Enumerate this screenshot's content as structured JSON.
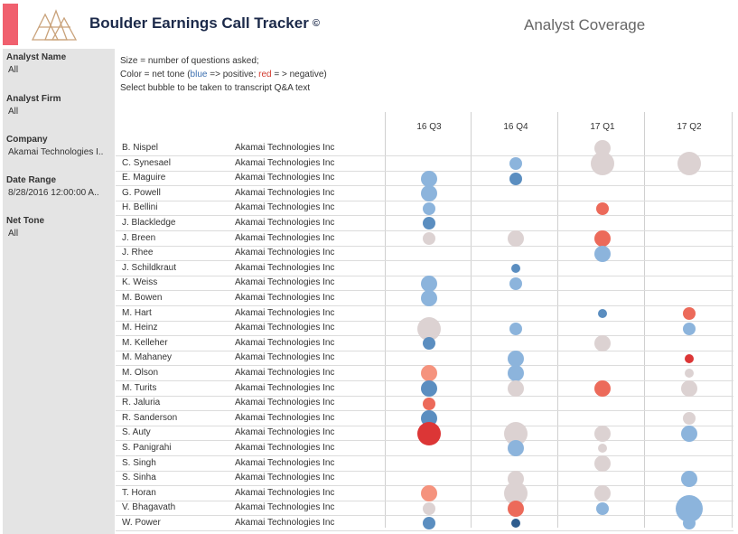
{
  "header": {
    "app_title": "Boulder Earnings Call Tracker",
    "copyright": "©",
    "page_title": "Analyst Coverage",
    "accent_color": "#f0606e",
    "logo_icon": "triangle-logo-icon"
  },
  "filters": [
    {
      "label": "Analyst Name",
      "value": "All"
    },
    {
      "label": "Analyst Firm",
      "value": "All"
    },
    {
      "label": "Company",
      "value": "Akamai Technologies I.."
    },
    {
      "label": "Date Range",
      "value": "8/28/2016 12:00:00 A.."
    },
    {
      "label": "Net Tone",
      "value": "All"
    }
  ],
  "legend": {
    "line1": "Size = number of questions asked;",
    "line2_prefix": "Color = net tone (",
    "line2_blue": "blue",
    "line2_mid": " => positive; ",
    "line2_red": "red",
    "line2_suffix": " = > negative)",
    "line3": "Select bubble to be taken to transcript Q&A text"
  },
  "colors": {
    "strong_positive": "#2f5d8f",
    "positive": "#5b8ec0",
    "mild_positive": "#8cb4dc",
    "neutral": "#dcd2d2",
    "mild_negative": "#f5937e",
    "negative": "#ec6a5a",
    "strong_negative": "#dc3636"
  },
  "columns": [
    "16 Q3",
    "16 Q4",
    "17 Q1",
    "17 Q2"
  ],
  "rows": [
    {
      "name": "B. Nispel",
      "firm": "Akamai Technologies Inc",
      "cells": [
        null,
        null,
        {
          "size": 3,
          "tone": "neutral"
        },
        null
      ]
    },
    {
      "name": "C. Synesael",
      "firm": "Akamai Technologies Inc",
      "cells": [
        null,
        {
          "size": 2,
          "tone": "mild_positive"
        },
        {
          "size": 4,
          "tone": "neutral"
        },
        {
          "size": 4,
          "tone": "neutral"
        }
      ]
    },
    {
      "name": "E. Maguire",
      "firm": "Akamai Technologies Inc",
      "cells": [
        {
          "size": 3,
          "tone": "mild_positive"
        },
        {
          "size": 2,
          "tone": "positive"
        },
        null,
        null
      ]
    },
    {
      "name": "G. Powell",
      "firm": "Akamai Technologies Inc",
      "cells": [
        {
          "size": 3,
          "tone": "mild_positive"
        },
        null,
        null,
        null
      ]
    },
    {
      "name": "H. Bellini",
      "firm": "Akamai Technologies Inc",
      "cells": [
        {
          "size": 2,
          "tone": "mild_positive"
        },
        null,
        {
          "size": 2,
          "tone": "negative"
        },
        null
      ]
    },
    {
      "name": "J. Blackledge",
      "firm": "Akamai Technologies Inc",
      "cells": [
        {
          "size": 2,
          "tone": "positive"
        },
        null,
        null,
        null
      ]
    },
    {
      "name": "J. Breen",
      "firm": "Akamai Technologies Inc",
      "cells": [
        {
          "size": 2,
          "tone": "neutral"
        },
        {
          "size": 3,
          "tone": "neutral"
        },
        {
          "size": 3,
          "tone": "negative"
        },
        null
      ]
    },
    {
      "name": "J. Rhee",
      "firm": "Akamai Technologies Inc",
      "cells": [
        null,
        null,
        {
          "size": 3,
          "tone": "mild_positive"
        },
        null
      ]
    },
    {
      "name": "J. Schildkraut",
      "firm": "Akamai Technologies Inc",
      "cells": [
        null,
        {
          "size": 1,
          "tone": "positive"
        },
        null,
        null
      ]
    },
    {
      "name": "K. Weiss",
      "firm": "Akamai Technologies Inc",
      "cells": [
        {
          "size": 3,
          "tone": "mild_positive"
        },
        {
          "size": 2,
          "tone": "mild_positive"
        },
        null,
        null
      ]
    },
    {
      "name": "M. Bowen",
      "firm": "Akamai Technologies Inc",
      "cells": [
        {
          "size": 3,
          "tone": "mild_positive"
        },
        null,
        null,
        null
      ]
    },
    {
      "name": "M. Hart",
      "firm": "Akamai Technologies Inc",
      "cells": [
        null,
        null,
        {
          "size": 1,
          "tone": "positive"
        },
        {
          "size": 2,
          "tone": "negative"
        }
      ]
    },
    {
      "name": "M. Heinz",
      "firm": "Akamai Technologies Inc",
      "cells": [
        {
          "size": 4,
          "tone": "neutral"
        },
        {
          "size": 2,
          "tone": "mild_positive"
        },
        null,
        {
          "size": 2,
          "tone": "mild_positive"
        }
      ]
    },
    {
      "name": "M. Kelleher",
      "firm": "Akamai Technologies Inc",
      "cells": [
        {
          "size": 2,
          "tone": "positive"
        },
        null,
        {
          "size": 3,
          "tone": "neutral"
        },
        null
      ]
    },
    {
      "name": "M. Mahaney",
      "firm": "Akamai Technologies Inc",
      "cells": [
        null,
        {
          "size": 3,
          "tone": "mild_positive"
        },
        null,
        {
          "size": 1,
          "tone": "strong_negative"
        }
      ]
    },
    {
      "name": "M. Olson",
      "firm": "Akamai Technologies Inc",
      "cells": [
        {
          "size": 3,
          "tone": "mild_negative"
        },
        {
          "size": 3,
          "tone": "mild_positive"
        },
        null,
        {
          "size": 1,
          "tone": "neutral"
        }
      ]
    },
    {
      "name": "M. Turits",
      "firm": "Akamai Technologies Inc",
      "cells": [
        {
          "size": 3,
          "tone": "positive"
        },
        {
          "size": 3,
          "tone": "neutral"
        },
        {
          "size": 3,
          "tone": "negative"
        },
        {
          "size": 3,
          "tone": "neutral"
        }
      ]
    },
    {
      "name": "R. Jaluria",
      "firm": "Akamai Technologies Inc",
      "cells": [
        {
          "size": 2,
          "tone": "negative"
        },
        null,
        null,
        null
      ]
    },
    {
      "name": "R. Sanderson",
      "firm": "Akamai Technologies Inc",
      "cells": [
        {
          "size": 3,
          "tone": "positive"
        },
        null,
        null,
        {
          "size": 2,
          "tone": "neutral"
        }
      ]
    },
    {
      "name": "S. Auty",
      "firm": "Akamai Technologies Inc",
      "cells": [
        {
          "size": 4,
          "tone": "strong_negative"
        },
        {
          "size": 4,
          "tone": "neutral"
        },
        {
          "size": 3,
          "tone": "neutral"
        },
        {
          "size": 3,
          "tone": "mild_positive"
        }
      ]
    },
    {
      "name": "S. Panigrahi",
      "firm": "Akamai Technologies Inc",
      "cells": [
        null,
        {
          "size": 3,
          "tone": "mild_positive"
        },
        {
          "size": 1,
          "tone": "neutral"
        },
        null
      ]
    },
    {
      "name": "S. Singh",
      "firm": "Akamai Technologies Inc",
      "cells": [
        null,
        null,
        {
          "size": 3,
          "tone": "neutral"
        },
        null
      ]
    },
    {
      "name": "S. Sinha",
      "firm": "Akamai Technologies Inc",
      "cells": [
        null,
        {
          "size": 3,
          "tone": "neutral"
        },
        null,
        {
          "size": 3,
          "tone": "mild_positive"
        }
      ]
    },
    {
      "name": "T. Horan",
      "firm": "Akamai Technologies Inc",
      "cells": [
        {
          "size": 3,
          "tone": "mild_negative"
        },
        {
          "size": 4,
          "tone": "neutral"
        },
        {
          "size": 3,
          "tone": "neutral"
        },
        null
      ]
    },
    {
      "name": "V. Bhagavath",
      "firm": "Akamai Technologies Inc",
      "cells": [
        {
          "size": 2,
          "tone": "neutral"
        },
        {
          "size": 3,
          "tone": "negative"
        },
        {
          "size": 2,
          "tone": "mild_positive"
        },
        {
          "size": 5,
          "tone": "mild_positive"
        }
      ]
    },
    {
      "name": "W. Power",
      "firm": "Akamai Technologies Inc",
      "cells": [
        {
          "size": 2,
          "tone": "positive"
        },
        {
          "size": 1,
          "tone": "strong_positive"
        },
        null,
        {
          "size": 2,
          "tone": "mild_positive"
        }
      ]
    }
  ]
}
